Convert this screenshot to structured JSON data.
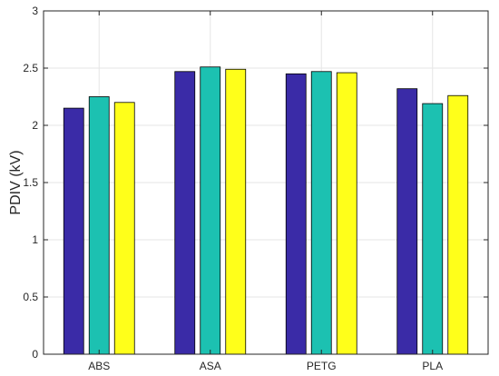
{
  "chart_data": {
    "type": "bar",
    "title": "",
    "xlabel": "",
    "ylabel": "PDIV (kV)",
    "ylim": [
      0,
      3
    ],
    "yticks": [
      0,
      0.5,
      1,
      1.5,
      2,
      2.5,
      3
    ],
    "ytick_labels": [
      "0",
      "0.5",
      "1",
      "1.5",
      "2",
      "2.5",
      "3"
    ],
    "grid": true,
    "legend": "none",
    "categories": [
      "ABS",
      "ASA",
      "PETG",
      "PLA"
    ],
    "series": [
      {
        "color": "#3a2ba7",
        "values": [
          2.15,
          2.47,
          2.45,
          2.32
        ]
      },
      {
        "color": "#1cc1b1",
        "values": [
          2.25,
          2.51,
          2.47,
          2.19
        ]
      },
      {
        "color": "#ffff1a",
        "values": [
          2.2,
          2.49,
          2.46,
          2.26
        ]
      }
    ]
  }
}
